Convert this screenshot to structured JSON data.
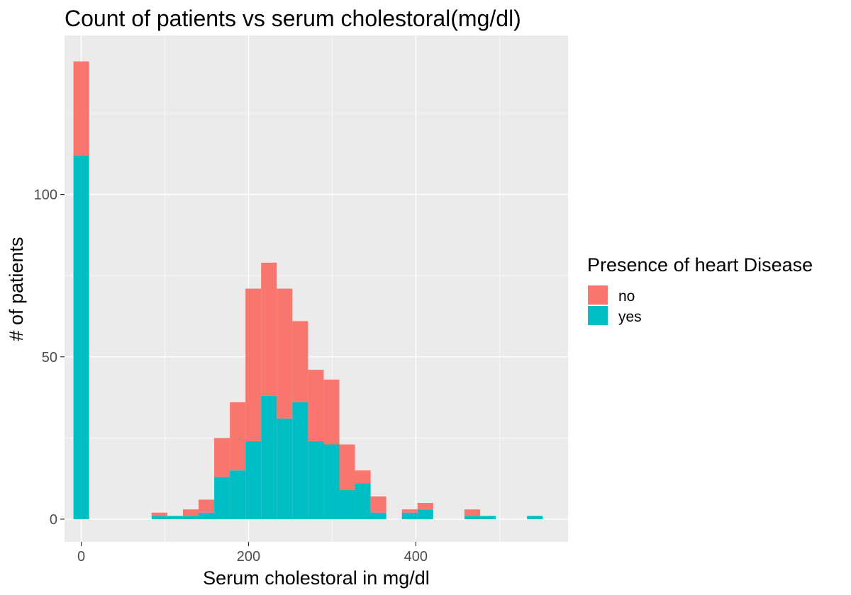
{
  "chart_data": {
    "type": "bar",
    "subtype": "stacked-histogram",
    "title": "Count of patients vs serum cholestoral(mg/dl)",
    "xlabel": "Serum cholestoral in mg/dl",
    "ylabel": "# of patients",
    "xlim": [
      -20,
      582
    ],
    "ylim": [
      -7,
      149
    ],
    "x_ticks": [
      0,
      200,
      400
    ],
    "y_ticks": [
      0,
      50,
      100
    ],
    "grid": true,
    "background": "#ebebeb",
    "bin_width": 18.7,
    "legend": {
      "title": "Presence of heart Disease",
      "position": "right"
    },
    "x": [
      0,
      93.5,
      112.2,
      130.9,
      149.6,
      168.3,
      187.0,
      205.7,
      224.4,
      243.1,
      261.8,
      280.5,
      299.2,
      317.9,
      336.6,
      355.3,
      392.7,
      411.4,
      467.5,
      486.2,
      542.3
    ],
    "series": [
      {
        "name": "yes",
        "color": "#00bfc4",
        "values": [
          112,
          1,
          1,
          1,
          2,
          13,
          15,
          24,
          38,
          31,
          36,
          24,
          23,
          9,
          11,
          2,
          2,
          3,
          1,
          1,
          1
        ]
      },
      {
        "name": "no",
        "color": "#f8766d",
        "values": [
          29,
          1,
          0,
          2,
          4,
          12,
          21,
          47,
          41,
          40,
          25,
          22,
          20,
          14,
          4,
          5,
          1,
          2,
          2,
          0,
          0
        ]
      }
    ]
  }
}
